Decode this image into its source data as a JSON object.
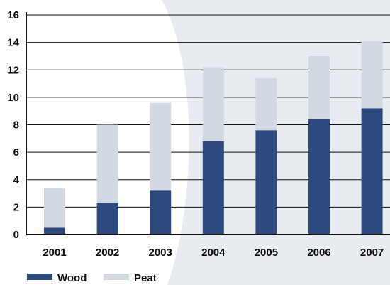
{
  "chart_data": {
    "type": "bar",
    "stacked": true,
    "categories": [
      "2001",
      "2002",
      "2003",
      "2004",
      "2005",
      "2006",
      "2007"
    ],
    "series": [
      {
        "name": "Wood",
        "color": "#2d4a7f",
        "values": [
          0.5,
          2.3,
          3.2,
          6.8,
          7.6,
          8.4,
          9.2
        ]
      },
      {
        "name": "Peat",
        "color": "#d3d9e3",
        "values": [
          2.9,
          5.7,
          6.4,
          5.4,
          3.8,
          4.6,
          4.9
        ]
      }
    ],
    "ylim": [
      0,
      16
    ],
    "yticks": [
      "0",
      "2",
      "4",
      "6",
      "8",
      "10",
      "12",
      "14",
      "16"
    ],
    "grid": true,
    "legend_position": "bottom-left",
    "title": "",
    "xlabel": "",
    "ylabel": ""
  },
  "style": {
    "background_right": "#e8ebf0",
    "background_left": "#ffffff",
    "gridline_color": "#111111",
    "axis_color": "#111111"
  }
}
